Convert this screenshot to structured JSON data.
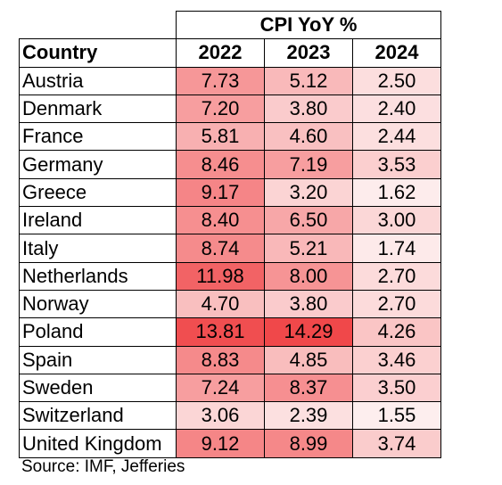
{
  "chart_data": {
    "type": "table",
    "title": "CPI YoY %",
    "row_header": "Country",
    "columns": [
      "2022",
      "2023",
      "2024"
    ],
    "rows": [
      {
        "country": "Austria",
        "values": [
          "7.73",
          "5.12",
          "2.50"
        ]
      },
      {
        "country": "Denmark",
        "values": [
          "7.20",
          "3.80",
          "2.40"
        ]
      },
      {
        "country": "France",
        "values": [
          "5.81",
          "4.60",
          "2.44"
        ]
      },
      {
        "country": "Germany",
        "values": [
          "8.46",
          "7.19",
          "3.53"
        ]
      },
      {
        "country": "Greece",
        "values": [
          "9.17",
          "3.20",
          "1.62"
        ]
      },
      {
        "country": "Ireland",
        "values": [
          "8.40",
          "6.50",
          "3.00"
        ]
      },
      {
        "country": "Italy",
        "values": [
          "8.74",
          "5.21",
          "1.74"
        ]
      },
      {
        "country": "Netherlands",
        "values": [
          "11.98",
          "8.00",
          "2.70"
        ]
      },
      {
        "country": "Norway",
        "values": [
          "4.70",
          "3.80",
          "2.70"
        ]
      },
      {
        "country": "Poland",
        "values": [
          "13.81",
          "14.29",
          "4.26"
        ]
      },
      {
        "country": "Spain",
        "values": [
          "8.83",
          "4.85",
          "3.46"
        ]
      },
      {
        "country": "Sweden",
        "values": [
          "7.24",
          "8.37",
          "3.50"
        ]
      },
      {
        "country": "Switzerland",
        "values": [
          "3.06",
          "2.39",
          "1.55"
        ]
      },
      {
        "country": "United Kingdom",
        "values": [
          "9.12",
          "8.99",
          "3.74"
        ]
      }
    ],
    "heatmap_colors": {
      "low": "#fdeeee",
      "high": "#f0484a"
    }
  },
  "source": "Source: IMF, Jefferies"
}
